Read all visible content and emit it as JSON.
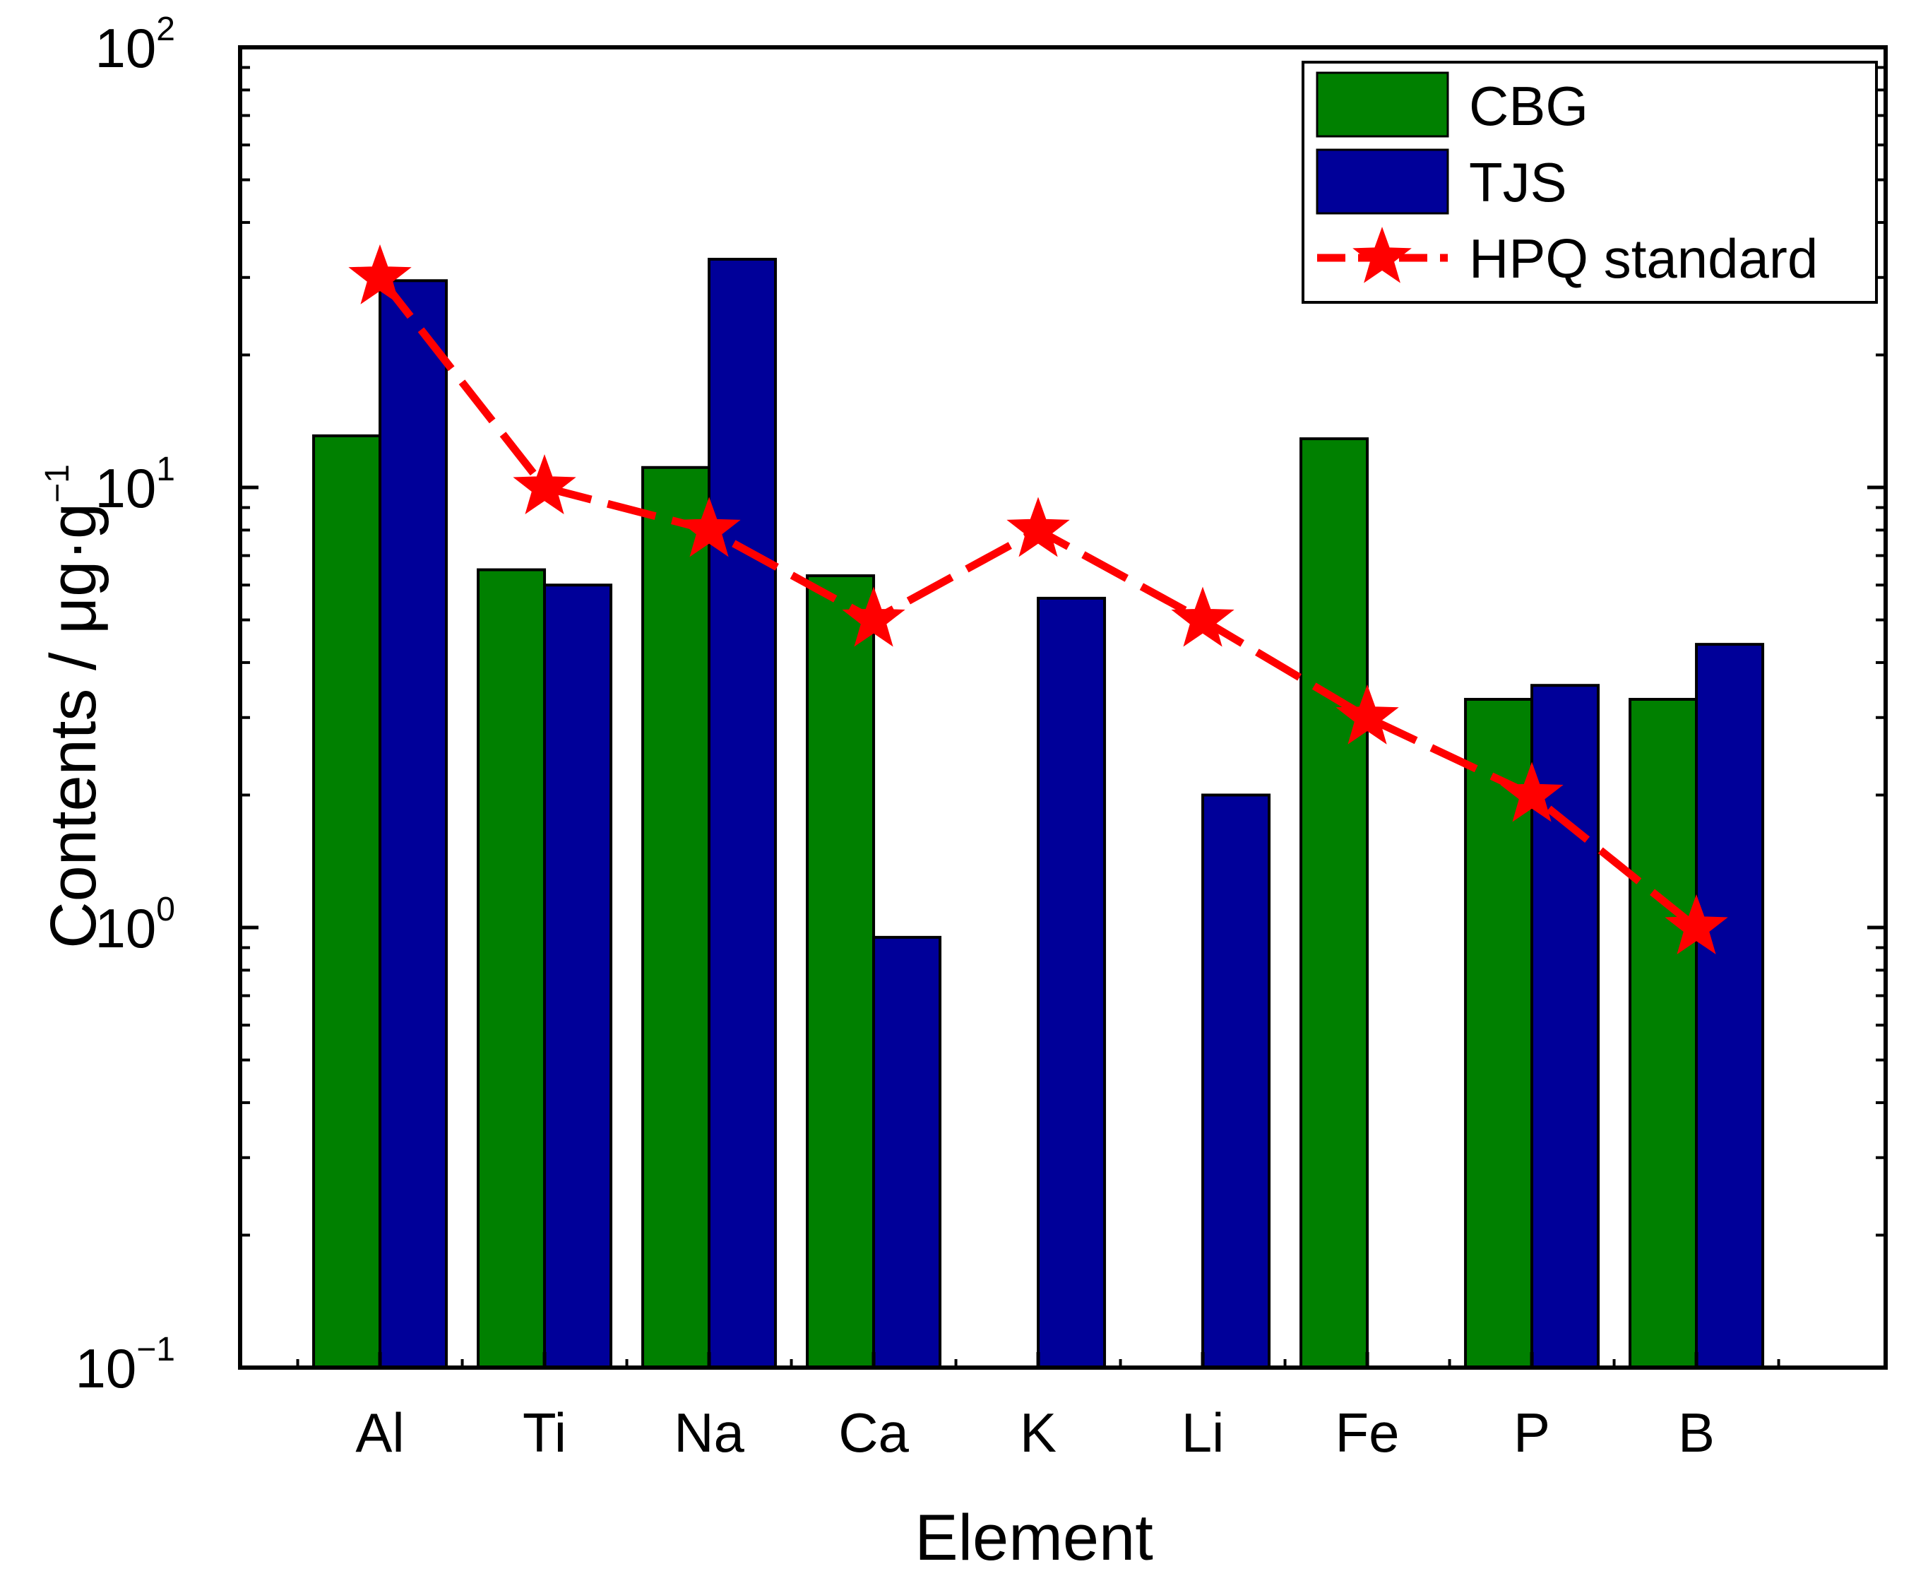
{
  "chart_data": {
    "type": "bar",
    "scale": "log",
    "title": "",
    "xlabel": "Element",
    "ylabel": "Contents / μg·g",
    "ylabel_superscript": "−1",
    "ylim": [
      0.1,
      100
    ],
    "y_ticks": [
      {
        "base": "10",
        "exp": "−1",
        "value": 0.1
      },
      {
        "base": "10",
        "exp": "0",
        "value": 1
      },
      {
        "base": "10",
        "exp": "1",
        "value": 10
      },
      {
        "base": "10",
        "exp": "2",
        "value": 100
      }
    ],
    "categories": [
      "Al",
      "Ti",
      "Na",
      "Ca",
      "K",
      "Li",
      "Fe",
      "P",
      "B"
    ],
    "series": [
      {
        "name": "CBG",
        "kind": "bar",
        "color": "#008000",
        "values": [
          13.1,
          6.5,
          11.1,
          6.3,
          null,
          null,
          12.9,
          3.3,
          3.3
        ]
      },
      {
        "name": "TJS",
        "kind": "bar",
        "color": "#000099",
        "values": [
          29.5,
          6.0,
          33.0,
          0.95,
          5.6,
          2.0,
          null,
          3.55,
          4.4
        ]
      },
      {
        "name": "HPQ standard",
        "kind": "line",
        "marker": "star",
        "color": "#ff0000",
        "values": [
          30,
          10,
          8,
          5,
          8,
          5,
          3,
          2,
          1
        ]
      }
    ],
    "legend": {
      "position": "top-right",
      "entries": [
        "CBG",
        "TJS",
        "HPQ standard"
      ]
    },
    "grid": false
  }
}
